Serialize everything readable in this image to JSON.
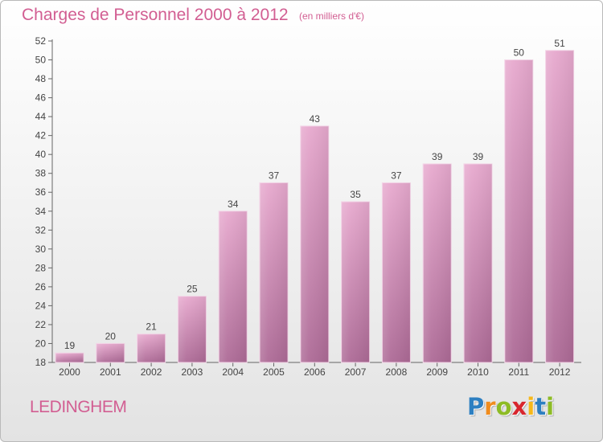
{
  "chart_data": {
    "type": "bar",
    "title": "Charges de Personnel 2000 à 2012",
    "subtitle": "(en milliers d'€)",
    "categories": [
      "2000",
      "2001",
      "2002",
      "2003",
      "2004",
      "2005",
      "2006",
      "2007",
      "2008",
      "2009",
      "2010",
      "2011",
      "2012"
    ],
    "values": [
      19,
      20,
      21,
      25,
      34,
      37,
      43,
      35,
      37,
      39,
      39,
      50,
      51
    ],
    "xlabel": "",
    "ylabel": "",
    "ylim": [
      18,
      52
    ],
    "ytick_step": 2,
    "grid": false,
    "colors": {
      "bar": "#e0a3c8",
      "bar_dark": "#b06a97",
      "label": "#d25e92",
      "axis": "#555555"
    }
  },
  "commune": "LEDINGHEM",
  "logo": {
    "letters": [
      "P",
      "r",
      "o",
      "x",
      "i",
      "t",
      "i"
    ],
    "colors": [
      "#2d7fc1",
      "#f08c1e",
      "#8dbb25",
      "#d8262e",
      "#f6b81a",
      "#2d7fc1",
      "#8dbb25"
    ]
  }
}
